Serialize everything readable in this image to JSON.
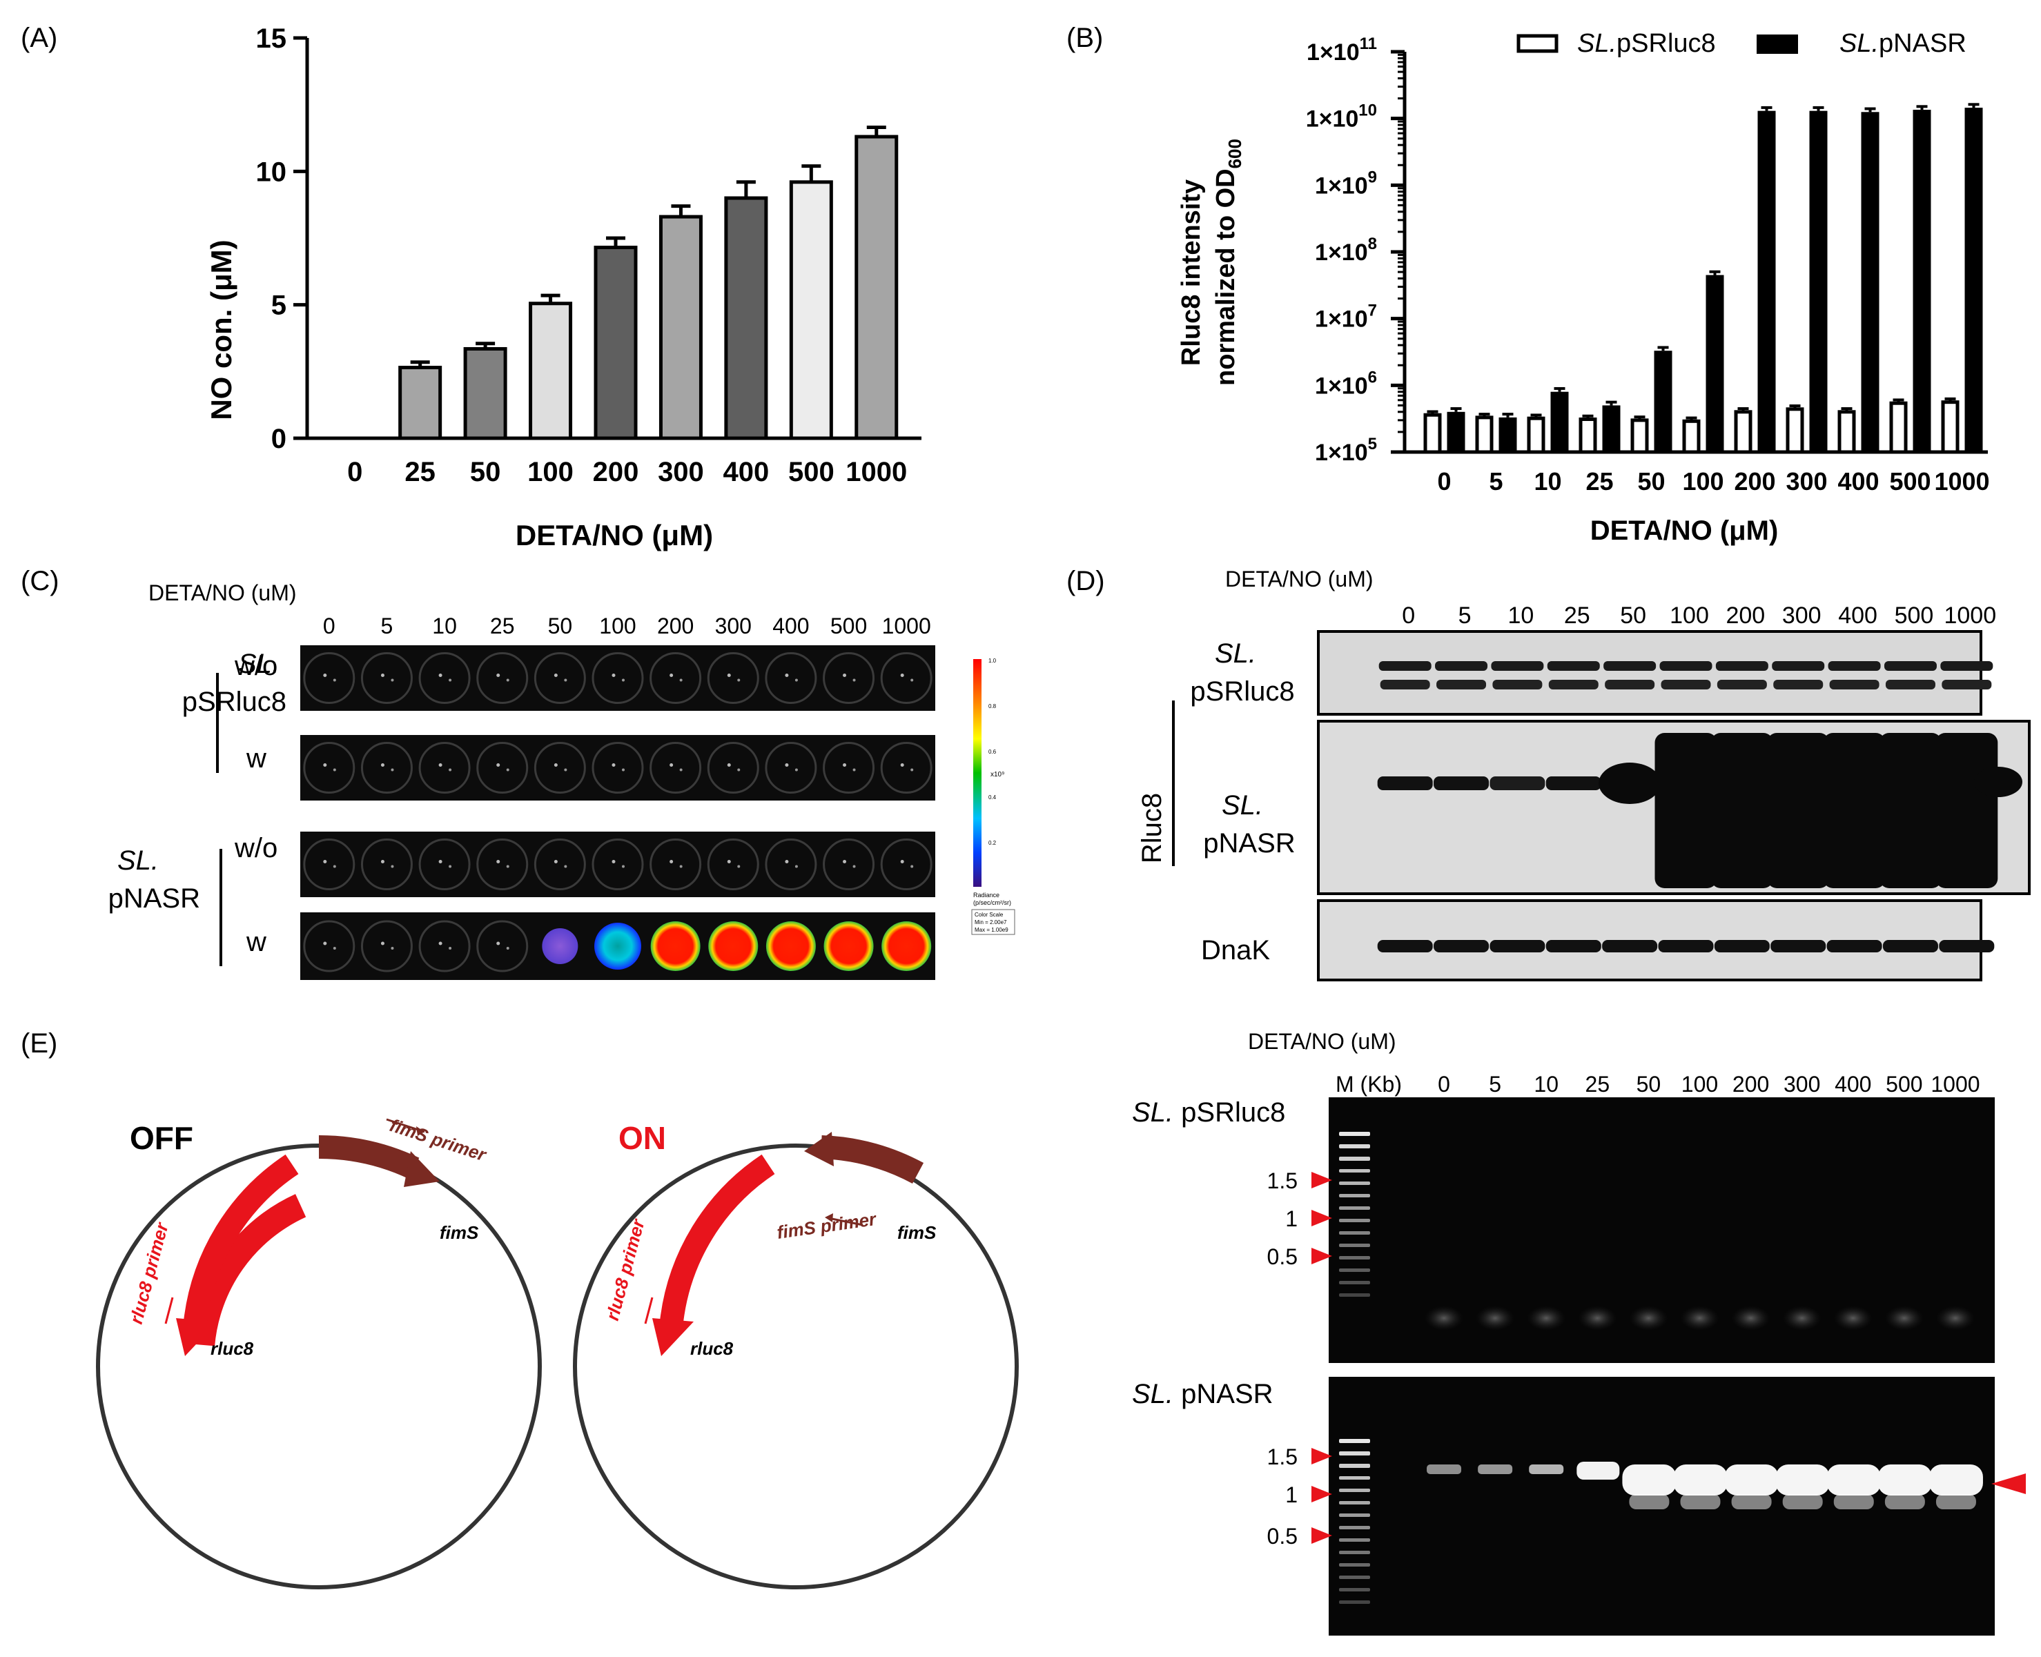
{
  "panels": {
    "A": {
      "label": "(A)",
      "chart_data": {
        "type": "bar",
        "title": "",
        "xlabel": "DETA/NO (μM)",
        "ylabel": "NO con. (μM)",
        "ylim": [
          0,
          15
        ],
        "yticks": [
          "0",
          "5",
          "10",
          "15"
        ],
        "categories": [
          "0",
          "25",
          "50",
          "100",
          "200",
          "300",
          "400",
          "500",
          "1000"
        ],
        "values": [
          0,
          2.65,
          3.35,
          5.05,
          7.15,
          8.3,
          9.0,
          9.6,
          11.3
        ],
        "errors": [
          0,
          0.2,
          0.2,
          0.3,
          0.35,
          0.4,
          0.6,
          0.6,
          0.35
        ],
        "bar_colors": [
          "#a5a5a5",
          "#a5a5a5",
          "#808080",
          "#dedede",
          "#5f5f5f",
          "#a5a5a5",
          "#5f5f5f",
          "#ececec",
          "#a5a5a5"
        ]
      }
    },
    "B": {
      "label": "(B)",
      "chart_data": {
        "type": "bar",
        "scale": "log",
        "xlabel": "DETA/NO (μM)",
        "ylabel_line1": "Rluc8 intensity",
        "ylabel_line2": "normalized to OD",
        "ylabel_sub": "600",
        "ylim": [
          100000,
          100000000000
        ],
        "yticks": [
          {
            "base": "1×10",
            "exp": "5"
          },
          {
            "base": "1×10",
            "exp": "6"
          },
          {
            "base": "1×10",
            "exp": "7"
          },
          {
            "base": "1×10",
            "exp": "8"
          },
          {
            "base": "1×10",
            "exp": "9"
          },
          {
            "base": "1×10",
            "exp": "10"
          },
          {
            "base": "1×10",
            "exp": "11"
          }
        ],
        "categories": [
          "0",
          "5",
          "10",
          "25",
          "50",
          "100",
          "200",
          "300",
          "400",
          "500",
          "1000"
        ],
        "legend_position": "top",
        "series": [
          {
            "name_italic": "SL.",
            "name_rest": "pSRluc8",
            "fill": "#ffffff",
            "values": [
              360000,
              330000,
              320000,
              310000,
              300000,
              290000,
              400000,
              440000,
              400000,
              540000,
              560000
            ]
          },
          {
            "name_italic": "SL.",
            "name_rest": "pNASR",
            "fill": "#000000",
            "values": [
              400000,
              330000,
              800000,
              500000,
              3300000,
              45000000,
              13000000000,
              13000000000,
              12500000000,
              13500000000,
              14500000000
            ]
          }
        ]
      }
    },
    "C": {
      "label": "(C)",
      "header": "DETA/NO (uM)",
      "concentrations": [
        "0",
        "5",
        "10",
        "25",
        "50",
        "100",
        "200",
        "300",
        "400",
        "500",
        "1000"
      ],
      "strain1_italic": "SL.",
      "strain1_rest": "pSRluc8",
      "strain2_italic": "SL.",
      "strain2_rest": "pNASR",
      "row_without": "w/o",
      "row_with": "w",
      "pnasr_with_signal": [
        0,
        0,
        0,
        0,
        0.2,
        0.45,
        0.9,
        0.95,
        1.0,
        1.0,
        1.0
      ],
      "colorbar_ticks": [
        "1.0",
        "0.8",
        "0.6",
        "0.4",
        "0.2"
      ],
      "colorbar_exp": "x10⁹",
      "colorbar_label1": "Radiance",
      "colorbar_label2": "(p/sec/cm²/sr)",
      "colorscale_line1": "Color Scale",
      "colorscale_line2": "Min = 2.00e7",
      "colorscale_line3": "Max = 1.00e9"
    },
    "D": {
      "label": "(D)",
      "header": "DETA/NO (uM)",
      "concentrations": [
        "0",
        "5",
        "10",
        "25",
        "50",
        "100",
        "200",
        "300",
        "400",
        "500",
        "1000"
      ],
      "group_label": "Rluc8",
      "strain1_italic": "SL.",
      "strain1_rest": "pSRluc8",
      "strain2_italic": "SL.",
      "strain2_rest": "pNASR",
      "loading_control": "DnaK",
      "pnasr_band_intensity": [
        0.45,
        0.45,
        0.4,
        0.5,
        0.9,
        1.0,
        1.0,
        1.0,
        1.0,
        1.0,
        1.0
      ]
    },
    "E": {
      "label": "(E)",
      "off_state": {
        "title": "OFF",
        "primer_fims": "fimS primer",
        "gene_fims": "fimS",
        "primer_rluc8": "rluc8 primer",
        "gene_rluc8": "rluc8"
      },
      "on_state": {
        "title": "ON",
        "primer_fims": "fimS primer",
        "gene_fims": "fimS",
        "primer_rluc8": "rluc8 primer",
        "gene_rluc8": "rluc8"
      },
      "gel_header": "DETA/NO (uM)",
      "ladder_label": "M (Kb)",
      "concentrations": [
        "0",
        "5",
        "10",
        "25",
        "50",
        "100",
        "200",
        "300",
        "400",
        "500",
        "1000"
      ],
      "gel1_italic": "SL.",
      "gel1_rest": "pSRluc8",
      "gel2_italic": "SL.",
      "gel2_rest": "pNASR",
      "size_markers": [
        "1.5",
        "1",
        "0.5"
      ],
      "gel2_band_intensity": [
        0.35,
        0.38,
        0.5,
        0.8,
        1.0,
        1.0,
        1.0,
        1.0,
        1.0,
        1.0,
        1.0
      ]
    }
  },
  "colors": {
    "primer_red": "#e8141c",
    "fims_brown": "#7a2a22",
    "on_red": "#e8141c"
  }
}
